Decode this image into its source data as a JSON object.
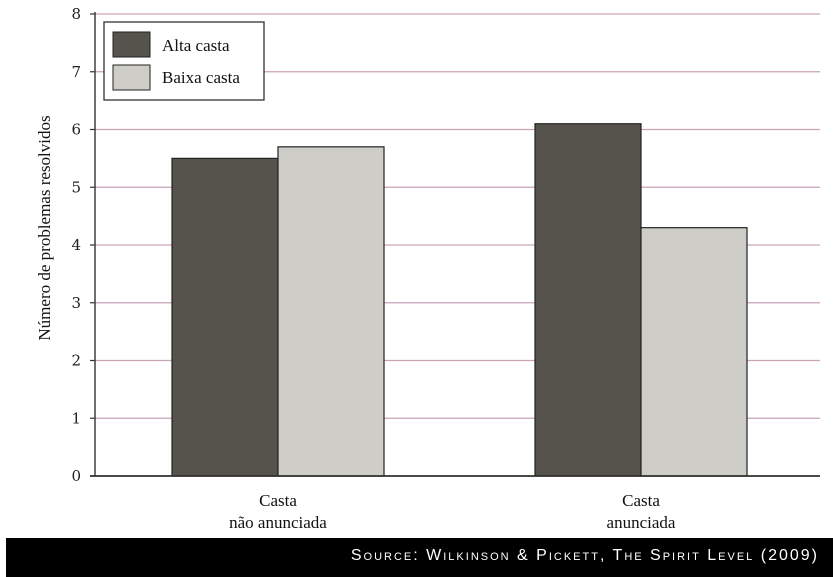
{
  "chart_data": {
    "type": "bar",
    "categories": [
      "Casta\nnão anunciada",
      "Casta\nanunciada"
    ],
    "series": [
      {
        "name": "Alta casta",
        "values": [
          5.5,
          6.1
        ],
        "color": "#55534c"
      },
      {
        "name": "Baixa casta",
        "values": [
          5.7,
          4.3
        ],
        "color": "#cfcdc7"
      }
    ],
    "ylabel": "Número de problemas resolvidos",
    "xlabel": "",
    "ylim": [
      0,
      8
    ],
    "yticks": [
      "0",
      "1",
      "2",
      "3",
      "4",
      "5",
      "6",
      "7",
      "8"
    ],
    "grid": true,
    "legend_position": "top-left"
  },
  "source": "Source: Wilkinson & Pickett, The Spirit Level (2009)",
  "colors": {
    "grid_line": "#c9a3b8",
    "axis": "#333333",
    "source_background": "#000000"
  }
}
